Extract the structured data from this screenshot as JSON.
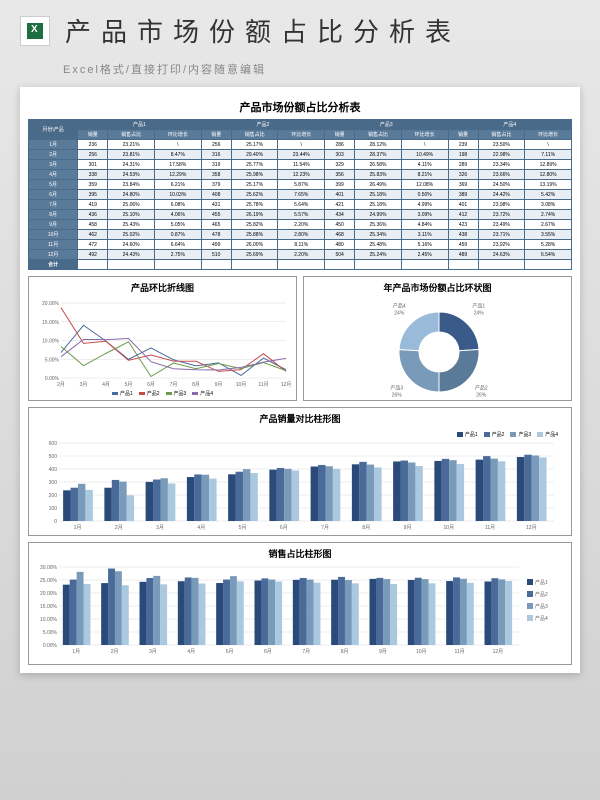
{
  "header": {
    "title": "产品市场份额占比分析表",
    "subtitle": "Excel格式/直接打印/内容随意编辑"
  },
  "table": {
    "title": "产品市场份额占比分析表",
    "corner": "月份\\产品",
    "products": [
      "产品1",
      "产品2",
      "产品3",
      "产品4"
    ],
    "cols": [
      "销量",
      "销售占比",
      "环比增长"
    ],
    "months": [
      "1月",
      "2月",
      "3月",
      "4月",
      "5月",
      "6月",
      "7月",
      "8月",
      "9月",
      "10月",
      "11月",
      "12月"
    ],
    "data": [
      [
        [
          236,
          "23.21%",
          "\\"
        ],
        [
          256,
          "25.17%",
          "\\"
        ],
        [
          286,
          "28.12%",
          "\\"
        ],
        [
          239,
          "23.50%",
          "\\"
        ]
      ],
      [
        [
          256,
          "23.81%",
          "8.47%"
        ],
        [
          316,
          "29.40%",
          "23.44%"
        ],
        [
          303,
          "28.37%",
          "10.49%"
        ],
        [
          198,
          "22.98%",
          "7.11%"
        ]
      ],
      [
        [
          301,
          "24.31%",
          "17.58%"
        ],
        [
          319,
          "25.77%",
          "11.54%"
        ],
        [
          329,
          "26.58%",
          "4.11%"
        ],
        [
          289,
          "23.34%",
          "12.89%"
        ]
      ],
      [
        [
          338,
          "24.53%",
          "12.29%"
        ],
        [
          358,
          "25.98%",
          "12.23%"
        ],
        [
          356,
          "25.83%",
          "8.21%"
        ],
        [
          326,
          "23.66%",
          "12.80%"
        ]
      ],
      [
        [
          359,
          "23.84%",
          "6.21%"
        ],
        [
          379,
          "25.17%",
          "5.87%"
        ],
        [
          399,
          "26.49%",
          "12.08%"
        ],
        [
          369,
          "24.50%",
          "13.19%"
        ]
      ],
      [
        [
          395,
          "24.80%",
          "10.03%"
        ],
        [
          408,
          "25.62%",
          "7.65%"
        ],
        [
          401,
          "25.18%",
          "0.50%"
        ],
        [
          389,
          "24.42%",
          "5.42%"
        ]
      ],
      [
        [
          419,
          "25.06%",
          "6.08%"
        ],
        [
          431,
          "25.78%",
          "5.64%"
        ],
        [
          421,
          "25.18%",
          "4.99%"
        ],
        [
          401,
          "23.98%",
          "3.08%"
        ]
      ],
      [
        [
          436,
          "25.10%",
          "4.06%"
        ],
        [
          455,
          "26.19%",
          "5.57%"
        ],
        [
          434,
          "24.99%",
          "3.09%"
        ],
        [
          412,
          "23.72%",
          "2.74%"
        ]
      ],
      [
        [
          458,
          "25.43%",
          "5.05%"
        ],
        [
          465,
          "25.82%",
          "2.20%"
        ],
        [
          450,
          "25.36%",
          "4.84%"
        ],
        [
          423,
          "23.49%",
          "2.67%"
        ]
      ],
      [
        [
          462,
          "25.02%",
          "0.87%"
        ],
        [
          478,
          "25.88%",
          "2.80%"
        ],
        [
          468,
          "25.34%",
          "3.11%"
        ],
        [
          438,
          "23.71%",
          "3.55%"
        ]
      ],
      [
        [
          472,
          "24.60%",
          "6.64%"
        ],
        [
          499,
          "26.00%",
          "8.11%"
        ],
        [
          480,
          "25.48%",
          "5.16%"
        ],
        [
          459,
          "23.92%",
          "5.28%"
        ]
      ],
      [
        [
          492,
          "24.43%",
          "2.75%"
        ],
        [
          510,
          "25.69%",
          "2.20%"
        ],
        [
          504,
          "25.24%",
          "2.45%"
        ],
        [
          489,
          "24.63%",
          "6.54%"
        ]
      ]
    ],
    "totals": [
      "合计",
      "4624",
      "",
      "",
      "4861",
      "",
      "",
      "4852",
      "",
      "",
      "4488",
      "",
      ""
    ]
  },
  "lineChart": {
    "title": "产品环比折线图",
    "yticks": [
      "0.00%",
      "5.00%",
      "10.00%",
      "15.00%",
      "20.00%"
    ],
    "xticks": [
      "2月",
      "3月",
      "4月",
      "5月",
      "6月",
      "7月",
      "8月",
      "9月",
      "10月",
      "11月",
      "12月"
    ],
    "series": [
      {
        "name": "产品1",
        "color": "#4a6a9a",
        "vals": [
          8.47,
          17.58,
          12.29,
          6.21,
          10.03,
          6.08,
          4.06,
          5.05,
          0.87,
          6.64,
          2.75
        ]
      },
      {
        "name": "产品2",
        "color": "#c84b4b",
        "vals": [
          23.44,
          11.54,
          12.23,
          5.87,
          7.65,
          5.64,
          5.57,
          2.2,
          2.8,
          8.11,
          2.2
        ]
      },
      {
        "name": "产品3",
        "color": "#6a9a4a",
        "vals": [
          10.49,
          4.11,
          8.21,
          12.08,
          0.5,
          4.99,
          3.09,
          4.84,
          3.11,
          5.16,
          2.45
        ]
      },
      {
        "name": "产品4",
        "color": "#8a6aaa",
        "vals": [
          7.11,
          12.89,
          12.8,
          13.19,
          5.42,
          3.08,
          2.74,
          2.67,
          3.55,
          5.28,
          6.54
        ]
      }
    ]
  },
  "donut": {
    "title": "年产品市场份额占比环状图",
    "slices": [
      {
        "name": "产品1",
        "pct": 24,
        "color": "#3a5a8a"
      },
      {
        "name": "产品2",
        "pct": 26,
        "color": "#5a7a9a"
      },
      {
        "name": "产品3",
        "pct": 26,
        "color": "#7a9aba"
      },
      {
        "name": "产品4",
        "pct": 24,
        "color": "#9abada"
      }
    ]
  },
  "barChart1": {
    "title": "产品销量对比柱形图",
    "yticks": [
      0,
      100,
      200,
      300,
      400,
      500,
      600
    ],
    "xticks": [
      "1月",
      "2月",
      "3月",
      "4月",
      "5月",
      "6月",
      "7月",
      "8月",
      "9月",
      "10月",
      "11月",
      "12月"
    ],
    "colors": [
      "#2a4a7a",
      "#4a6a9a",
      "#7a9aba",
      "#aac8e0"
    ],
    "legend": [
      "产品1",
      "产品2",
      "产品3",
      "产品4"
    ],
    "data": [
      [
        236,
        256,
        286,
        239
      ],
      [
        256,
        316,
        303,
        198
      ],
      [
        301,
        319,
        329,
        289
      ],
      [
        338,
        358,
        356,
        326
      ],
      [
        359,
        379,
        399,
        369
      ],
      [
        395,
        408,
        401,
        389
      ],
      [
        419,
        431,
        421,
        401
      ],
      [
        436,
        455,
        434,
        412
      ],
      [
        458,
        465,
        450,
        423
      ],
      [
        462,
        478,
        468,
        438
      ],
      [
        472,
        499,
        480,
        459
      ],
      [
        492,
        510,
        504,
        489
      ]
    ]
  },
  "barChart2": {
    "title": "销售占比柱形图",
    "yticks": [
      "0.00%",
      "5.00%",
      "10.00%",
      "15.00%",
      "20.00%",
      "25.00%",
      "30.00%"
    ],
    "xticks": [
      "1月",
      "2月",
      "3月",
      "4月",
      "5月",
      "6月",
      "7月",
      "8月",
      "9月",
      "10月",
      "11月",
      "12月"
    ],
    "colors": [
      "#2a4a7a",
      "#4a6a9a",
      "#7a9aba",
      "#aac8e0"
    ],
    "legend": [
      "产品1",
      "产品2",
      "产品3",
      "产品4"
    ],
    "data": [
      [
        23.21,
        25.17,
        28.12,
        23.5
      ],
      [
        23.81,
        29.4,
        28.37,
        22.98
      ],
      [
        24.31,
        25.77,
        26.58,
        23.34
      ],
      [
        24.53,
        25.98,
        25.83,
        23.66
      ],
      [
        23.84,
        25.17,
        26.49,
        24.5
      ],
      [
        24.8,
        25.62,
        25.18,
        24.42
      ],
      [
        25.06,
        25.78,
        25.18,
        23.98
      ],
      [
        25.1,
        26.19,
        24.99,
        23.72
      ],
      [
        25.43,
        25.82,
        25.36,
        23.49
      ],
      [
        25.02,
        25.88,
        25.34,
        23.71
      ],
      [
        24.6,
        26.0,
        25.48,
        23.92
      ],
      [
        24.43,
        25.69,
        25.24,
        24.63
      ]
    ]
  }
}
